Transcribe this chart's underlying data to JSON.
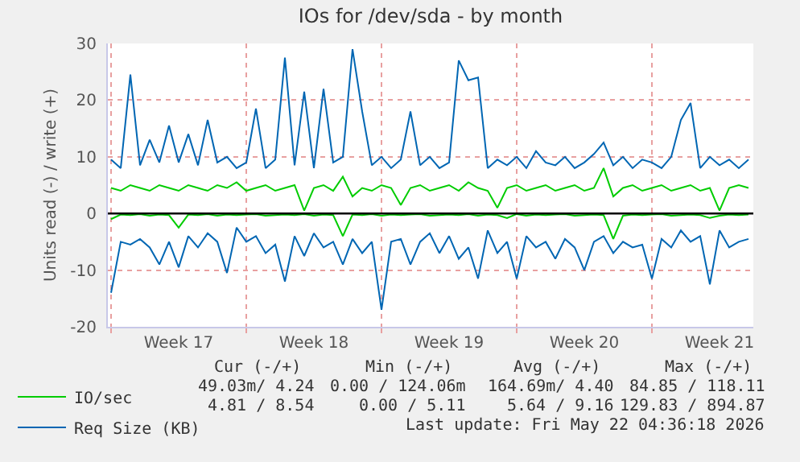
{
  "chart_data": {
    "type": "line",
    "title": "IOs for /dev/sda - by month",
    "ylabel": "Units read (-) / write (+)",
    "x": [
      "2026-04-20T00:00",
      "2026-04-20T12:00",
      "2026-04-21T00:00",
      "2026-04-21T12:00",
      "2026-04-22T00:00",
      "2026-04-22T12:00",
      "2026-04-23T00:00",
      "2026-04-23T12:00",
      "2026-04-24T00:00",
      "2026-04-24T12:00",
      "2026-04-25T00:00",
      "2026-04-25T12:00",
      "2026-04-26T00:00",
      "2026-04-26T12:00",
      "2026-04-27T00:00",
      "2026-04-27T12:00",
      "2026-04-28T00:00",
      "2026-04-28T12:00",
      "2026-04-29T00:00",
      "2026-04-29T12:00",
      "2026-04-30T00:00",
      "2026-04-30T12:00",
      "2026-05-01T00:00",
      "2026-05-01T12:00",
      "2026-05-02T00:00",
      "2026-05-02T12:00",
      "2026-05-03T00:00",
      "2026-05-03T12:00",
      "2026-05-04T00:00",
      "2026-05-04T12:00",
      "2026-05-05T00:00",
      "2026-05-05T12:00",
      "2026-05-06T00:00",
      "2026-05-06T12:00",
      "2026-05-07T00:00",
      "2026-05-07T12:00",
      "2026-05-08T00:00",
      "2026-05-08T12:00",
      "2026-05-09T00:00",
      "2026-05-09T12:00",
      "2026-05-10T00:00",
      "2026-05-10T12:00",
      "2026-05-11T00:00",
      "2026-05-11T12:00",
      "2026-05-12T00:00",
      "2026-05-12T12:00",
      "2026-05-13T00:00",
      "2026-05-13T12:00",
      "2026-05-14T00:00",
      "2026-05-14T12:00",
      "2026-05-15T00:00",
      "2026-05-15T12:00",
      "2026-05-16T00:00",
      "2026-05-16T12:00",
      "2026-05-17T00:00",
      "2026-05-17T12:00",
      "2026-05-18T00:00",
      "2026-05-18T12:00",
      "2026-05-19T00:00",
      "2026-05-19T12:00",
      "2026-05-20T00:00",
      "2026-05-20T12:00",
      "2026-05-21T00:00",
      "2026-05-21T12:00",
      "2026-05-22T00:00",
      "2026-05-22T12:00",
      "2026-05-23T00:00"
    ],
    "series": [
      {
        "name": "IO/sec",
        "color": "#00cc00",
        "values": [
          4.5,
          4,
          5,
          4.5,
          4,
          5,
          4.5,
          4,
          5,
          4.5,
          4,
          5,
          4.5,
          5.5,
          4,
          4.5,
          5,
          4,
          4.5,
          5,
          0.5,
          4.5,
          5,
          4,
          6.5,
          3,
          4.5,
          4,
          5,
          4.5,
          1.5,
          4.5,
          5,
          4,
          4.5,
          5,
          4,
          5.5,
          4.5,
          4,
          1,
          4.5,
          5,
          4,
          4.5,
          5,
          4,
          4.5,
          5,
          4,
          4.5,
          8,
          3,
          4.5,
          5,
          4,
          4.5,
          5,
          4,
          4.5,
          5,
          4,
          4.5,
          0.5,
          4.5,
          5,
          4.5
        ]
      },
      {
        "color": "#00cc00",
        "values": [
          -1,
          -0.2,
          -0.3,
          -0.1,
          -0.4,
          -0.2,
          -0.3,
          -2.5,
          -0.2,
          -0.3,
          -0.1,
          -0.4,
          -0.2,
          -0.3,
          -0.2,
          -0.1,
          -0.4,
          -0.3,
          -0.2,
          -0.3,
          -0.1,
          -0.4,
          -0.2,
          -0.3,
          -4,
          -0.2,
          -0.3,
          -0.1,
          -0.4,
          -0.2,
          -0.3,
          -0.2,
          -0.1,
          -0.4,
          -0.3,
          -0.2,
          -0.3,
          -0.1,
          -0.4,
          -0.2,
          -0.3,
          -0.8,
          -0.1,
          -0.4,
          -0.2,
          -0.3,
          -0.2,
          -0.1,
          -0.4,
          -0.3,
          -0.2,
          -0.3,
          -4.5,
          -0.4,
          -0.2,
          -0.3,
          -0.2,
          -0.1,
          -0.4,
          -0.3,
          -0.2,
          -0.3,
          -0.8,
          -0.4,
          -0.2,
          -0.3,
          -0.2
        ]
      },
      {
        "name": "Req Size (KB)",
        "color": "#0066b3",
        "values": [
          9.5,
          8,
          24.5,
          8.5,
          13,
          9,
          15.5,
          9,
          14,
          8.5,
          16.5,
          9,
          10,
          8,
          9,
          18.5,
          8,
          9.5,
          27.5,
          8.5,
          21.5,
          8,
          22,
          9,
          10,
          29,
          18,
          8.5,
          10,
          8,
          9.5,
          18,
          8.5,
          10,
          8,
          9,
          27,
          23.5,
          24,
          8,
          9.5,
          8.5,
          10,
          8,
          11,
          9,
          8.5,
          10,
          8,
          9,
          10.5,
          12.5,
          8.5,
          10,
          8,
          9.5,
          9,
          8,
          10,
          16.5,
          19.5,
          8,
          10,
          8.5,
          9.5,
          8,
          9.5
        ]
      },
      {
        "color": "#0066b3",
        "values": [
          -14,
          -5,
          -5.5,
          -4.5,
          -6,
          -9,
          -5,
          -9.5,
          -4,
          -6,
          -3.5,
          -5,
          -10.5,
          -2.5,
          -5,
          -4,
          -7,
          -5.5,
          -12,
          -4,
          -7.5,
          -3.5,
          -6,
          -5,
          -9,
          -4.5,
          -7,
          -5,
          -17,
          -5,
          -4.5,
          -9,
          -5,
          -3.5,
          -7,
          -4,
          -8,
          -6,
          -11.5,
          -3,
          -7,
          -5,
          -11.5,
          -4,
          -6,
          -5,
          -8,
          -4.5,
          -6,
          -10,
          -5,
          -4,
          -7,
          -5,
          -6,
          -5.5,
          -11.5,
          -4.5,
          -6,
          -3,
          -5,
          -4,
          -12.5,
          -3,
          -6,
          -5,
          -4.5
        ]
      }
    ],
    "xlim": [
      "2026-04-19T20:00",
      "2026-05-23T06:00"
    ],
    "xticks": [
      {
        "value": "2026-04-20T00:00",
        "label": null
      },
      {
        "value": "2026-04-23T12:00",
        "label": "Week 17"
      },
      {
        "value": "2026-04-27T00:00",
        "label": null
      },
      {
        "value": "2026-04-30T12:00",
        "label": "Week 18"
      },
      {
        "value": "2026-05-04T00:00",
        "label": null
      },
      {
        "value": "2026-05-07T12:00",
        "label": "Week 19"
      },
      {
        "value": "2026-05-11T00:00",
        "label": null
      },
      {
        "value": "2026-05-14T12:00",
        "label": "Week 20"
      },
      {
        "value": "2026-05-18T00:00",
        "label": null
      },
      {
        "value": "2026-05-21T12:00",
        "label": "Week 21"
      }
    ],
    "ylim": [
      -20,
      30
    ],
    "yticks": [
      -20,
      -10,
      0,
      10,
      20,
      30
    ],
    "ref_lines": [
      {
        "axis": "y",
        "value": 0,
        "color": "#000000"
      }
    ],
    "grid": true,
    "legend": "bottom",
    "marker": "none",
    "line_style": "solid",
    "annotations": [
      "Cur (-/+)",
      "Min (-/+)",
      "Avg (-/+)",
      "Max (-/+)",
      "49.03m/ 4.24",
      "0.00 / 124.06m",
      "164.69m/ 4.40",
      "84.85 / 118.11",
      "4.81 / 8.54",
      "0.00 / 5.11",
      "5.64 / 9.16",
      "129.83 / 894.87",
      "Last update: Fri May 22 04:36:18 2026"
    ]
  }
}
